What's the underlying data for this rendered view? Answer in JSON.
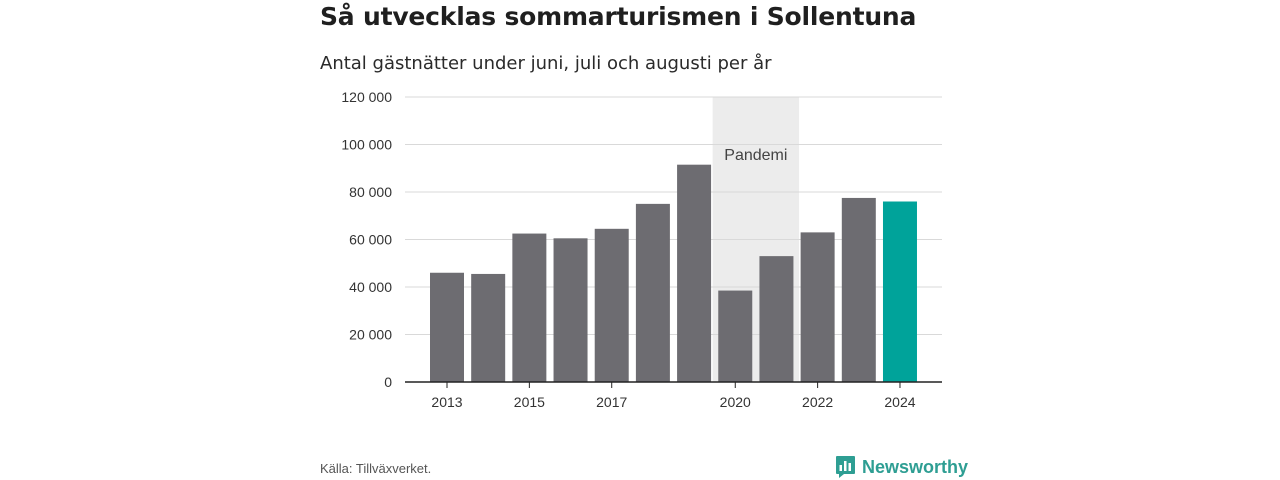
{
  "title": "Så utvecklas sommarturismen i Sollentuna",
  "subtitle": "Antal gästnätter under juni, juli och augusti per år",
  "source": "Källa: Tillväxverket.",
  "brand": {
    "name": "Newsworthy",
    "icon": "bar-chart-badge-icon",
    "color": "#2e9e93"
  },
  "chart_data": {
    "type": "bar",
    "title": "Så utvecklas sommarturismen i Sollentuna",
    "subtitle": "Antal gästnätter under juni, juli och augusti per år",
    "categories": [
      "2013",
      "2014",
      "2015",
      "2016",
      "2017",
      "2018",
      "2019",
      "2020",
      "2021",
      "2022",
      "2023",
      "2024"
    ],
    "values": [
      46000,
      45500,
      62500,
      60500,
      64500,
      75000,
      91500,
      38500,
      53000,
      63000,
      77500,
      76000
    ],
    "bar_colors": [
      "#6d6c71",
      "#6d6c71",
      "#6d6c71",
      "#6d6c71",
      "#6d6c71",
      "#6d6c71",
      "#6d6c71",
      "#6d6c71",
      "#6d6c71",
      "#6d6c71",
      "#6d6c71",
      "#00a39a"
    ],
    "xtick_labels": [
      "2013",
      "2015",
      "2017",
      "2020",
      "2022",
      "2024"
    ],
    "ylim": [
      0,
      120000
    ],
    "yticks": [
      0,
      20000,
      40000,
      60000,
      80000,
      100000,
      120000
    ],
    "ytick_labels": [
      "0",
      "20 000",
      "40 000",
      "60 000",
      "80 000",
      "100 000",
      "120 000"
    ],
    "grid": true,
    "annotation": {
      "label": "Pandemi",
      "x_start": "2020",
      "x_end": "2021"
    }
  }
}
